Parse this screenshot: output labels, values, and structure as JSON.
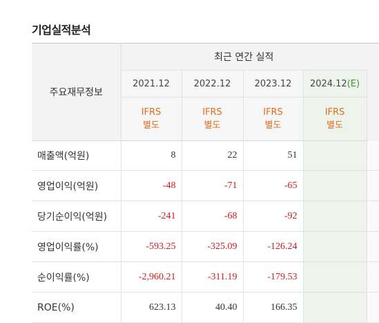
{
  "title": "기업실적분석",
  "header": {
    "label": "주요재무정보",
    "group": "최근 연간 실적",
    "years": [
      {
        "text": "2021.12",
        "suffix": ""
      },
      {
        "text": "2022.12",
        "suffix": ""
      },
      {
        "text": "2023.12",
        "suffix": ""
      },
      {
        "text": "2024.12",
        "suffix": "(E)"
      }
    ],
    "ifrs": [
      "IFRS",
      "IFRS",
      "IFRS",
      "IFRS"
    ],
    "basis": [
      "별도",
      "별도",
      "별도",
      "별도"
    ]
  },
  "rows": [
    {
      "label": "매출액(억원)",
      "values": [
        "8",
        "22",
        "51",
        ""
      ]
    },
    {
      "label": "영업이익(억원)",
      "values": [
        "-48",
        "-71",
        "-65",
        ""
      ]
    },
    {
      "label": "당기순이익(억원)",
      "values": [
        "-241",
        "-68",
        "-92",
        ""
      ]
    },
    {
      "label": "영업이익률(%)",
      "values": [
        "-593.25",
        "-325.09",
        "-126.24",
        ""
      ]
    },
    {
      "label": "순이익률(%)",
      "values": [
        "-2,960.21",
        "-311.19",
        "-179.53",
        ""
      ]
    },
    {
      "label": "ROE(%)",
      "values": [
        "623.13",
        "40.40",
        "166.35",
        ""
      ]
    }
  ],
  "colors": {
    "negative": "#d01b1b",
    "ifrs": "#e36b1d",
    "estimate_bg": "#eef4ec",
    "estimate_mark": "#3a9a3a"
  }
}
